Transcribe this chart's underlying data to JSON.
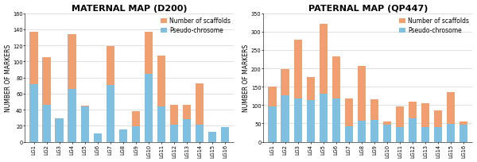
{
  "maternal": {
    "title": "MATERNAL MAP (D200)",
    "ylim": [
      0,
      160
    ],
    "yticks": [
      0,
      20,
      40,
      60,
      80,
      100,
      120,
      140,
      160
    ],
    "categories": [
      "LG1",
      "LG2",
      "LG3",
      "LG4",
      "LG5",
      "LG6",
      "LG7",
      "LG8",
      "LG9",
      "LG10",
      "LG11",
      "LG12",
      "LG13",
      "LG14",
      "LG15",
      "LG16"
    ],
    "pseudo": [
      72,
      46,
      29,
      66,
      44,
      10,
      71,
      15,
      19,
      85,
      44,
      21,
      28,
      21,
      12,
      18
    ],
    "scaffold": [
      65,
      59,
      0,
      68,
      1,
      0,
      48,
      0,
      19,
      52,
      63,
      25,
      18,
      52,
      0,
      0
    ]
  },
  "paternal": {
    "title": "PATERNAL MAP (QP447)",
    "ylim": [
      0,
      350
    ],
    "yticks": [
      0,
      50,
      100,
      150,
      200,
      250,
      300,
      350
    ],
    "categories": [
      "LG1",
      "LG2",
      "LG3",
      "LG4",
      "LG5",
      "LG6",
      "LG7",
      "LG8",
      "LG9",
      "LG10",
      "LG11",
      "LG12",
      "LG13",
      "LG14",
      "LG15",
      "LG16"
    ],
    "pseudo": [
      97,
      127,
      118,
      113,
      132,
      118,
      43,
      58,
      59,
      46,
      40,
      63,
      40,
      40,
      49,
      46
    ],
    "scaffold": [
      53,
      71,
      161,
      64,
      190,
      114,
      74,
      148,
      56,
      9,
      57,
      47,
      66,
      45,
      87,
      9
    ]
  },
  "color_pseudo": "#7fbfdf",
  "color_scaffold": "#f0a070",
  "legend_scaffold": "Number of scaffolds",
  "legend_pseudo": "Pseudo-chrosome",
  "bar_width": 0.65,
  "title_fontsize": 8,
  "tick_fontsize": 4.8,
  "ylabel_fontsize": 5.5,
  "legend_fontsize": 5.5,
  "background_color": "#ffffff"
}
